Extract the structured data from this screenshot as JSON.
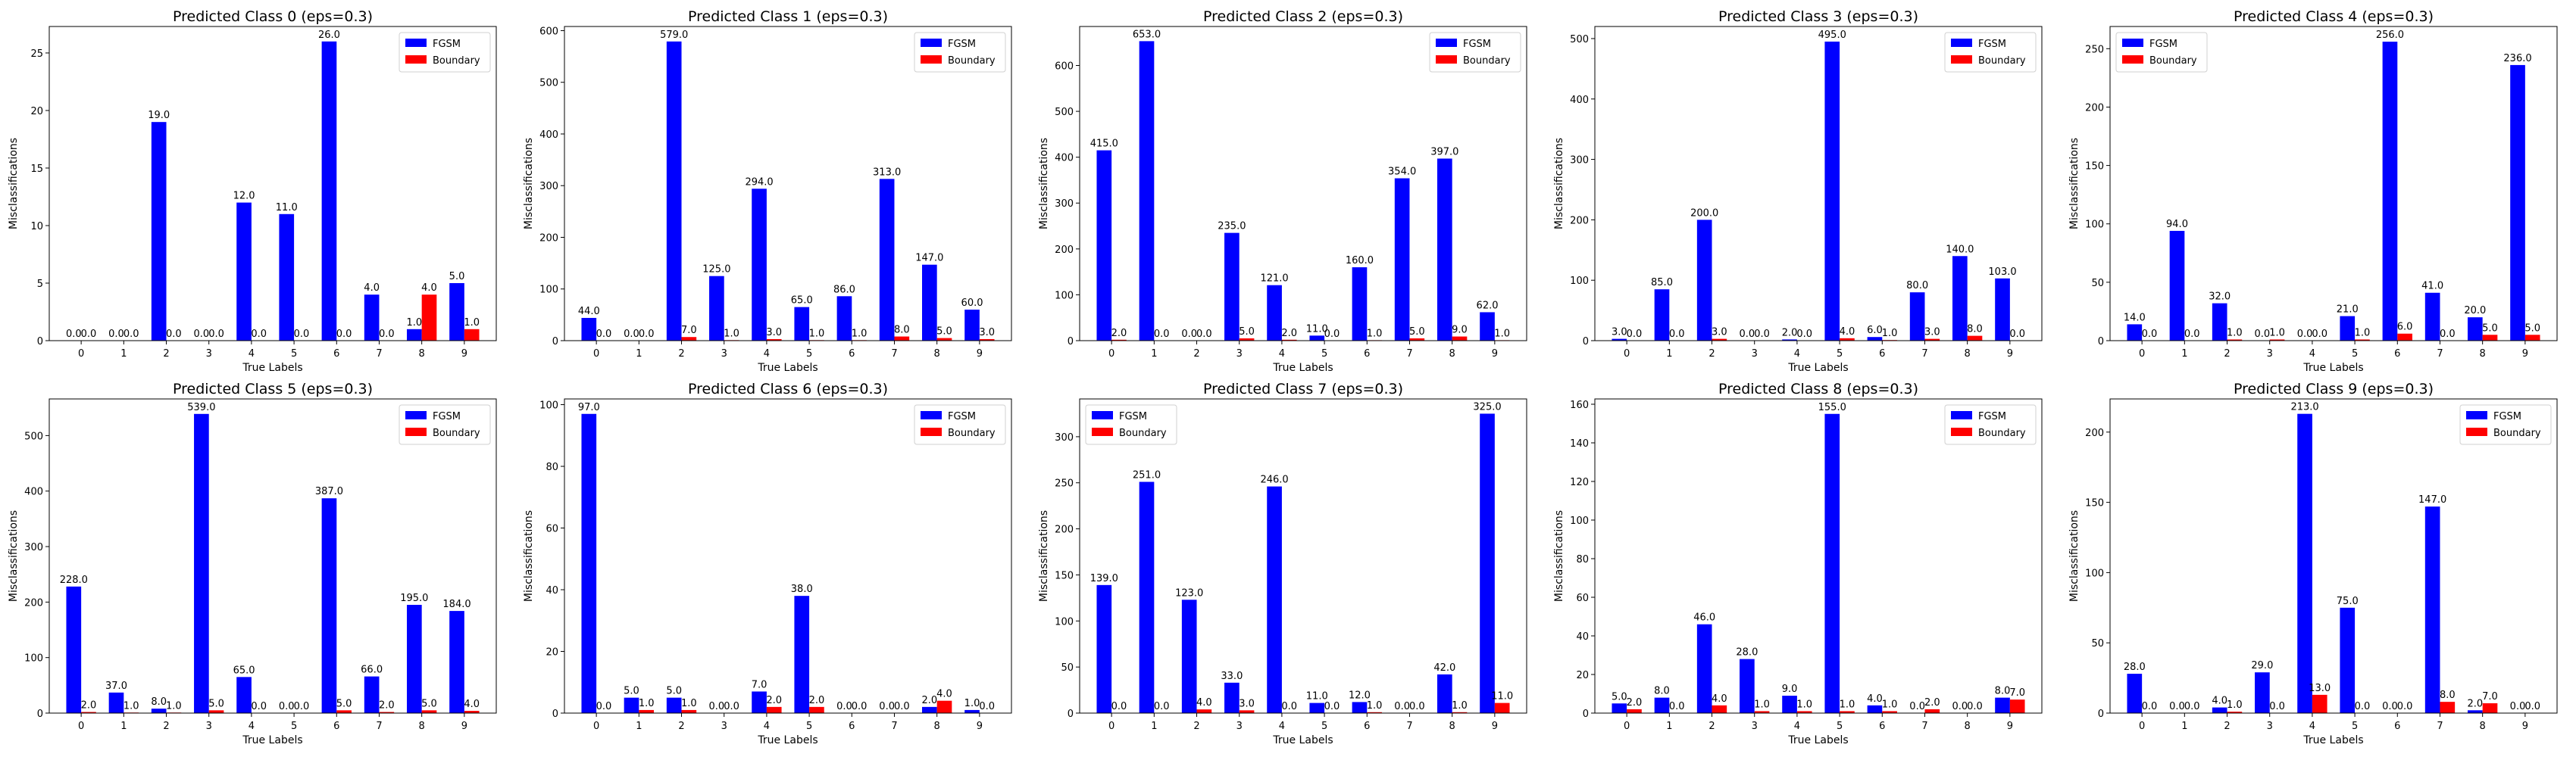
{
  "colors": {
    "fgsm": "#0000ff",
    "boundary": "#ff0000"
  },
  "chart_data": [
    {
      "type": "bar",
      "title": "Predicted Class 0 (eps=0.3)",
      "xlabel": "True Labels",
      "ylabel": "Misclassifications",
      "categories": [
        "0",
        "1",
        "2",
        "3",
        "4",
        "5",
        "6",
        "7",
        "8",
        "9"
      ],
      "ylim": [
        0,
        27.3
      ],
      "yticks": [
        0,
        5,
        10,
        15,
        20,
        25
      ],
      "legend_position": "top-right",
      "series": [
        {
          "name": "FGSM",
          "values": [
            0,
            0,
            19,
            0,
            12,
            11,
            26,
            4,
            1,
            5
          ]
        },
        {
          "name": "Boundary",
          "values": [
            0,
            0,
            0,
            0,
            0,
            0,
            0,
            0,
            4,
            1
          ]
        }
      ]
    },
    {
      "type": "bar",
      "title": "Predicted Class 1 (eps=0.3)",
      "xlabel": "True Labels",
      "ylabel": "Misclassifications",
      "categories": [
        "0",
        "1",
        "2",
        "3",
        "4",
        "5",
        "6",
        "7",
        "8",
        "9"
      ],
      "ylim": [
        0,
        608
      ],
      "yticks": [
        0,
        100,
        200,
        300,
        400,
        500,
        600
      ],
      "legend_position": "top-right",
      "series": [
        {
          "name": "FGSM",
          "values": [
            44,
            0,
            579,
            125,
            294,
            65,
            86,
            313,
            147,
            60
          ]
        },
        {
          "name": "Boundary",
          "values": [
            0,
            0,
            7,
            1,
            3,
            1,
            1,
            8,
            5,
            3
          ]
        }
      ]
    },
    {
      "type": "bar",
      "title": "Predicted Class 2 (eps=0.3)",
      "xlabel": "True Labels",
      "ylabel": "Misclassifications",
      "categories": [
        "0",
        "1",
        "2",
        "3",
        "4",
        "5",
        "6",
        "7",
        "8",
        "9"
      ],
      "ylim": [
        0,
        685
      ],
      "yticks": [
        0,
        100,
        200,
        300,
        400,
        500,
        600
      ],
      "legend_position": "top-right",
      "series": [
        {
          "name": "FGSM",
          "values": [
            415,
            653,
            0,
            235,
            121,
            11,
            160,
            354,
            397,
            62
          ]
        },
        {
          "name": "Boundary",
          "values": [
            2,
            0,
            0,
            5,
            2,
            0,
            1,
            5,
            9,
            1
          ]
        }
      ]
    },
    {
      "type": "bar",
      "title": "Predicted Class 3 (eps=0.3)",
      "xlabel": "True Labels",
      "ylabel": "Misclassifications",
      "categories": [
        "0",
        "1",
        "2",
        "3",
        "4",
        "5",
        "6",
        "7",
        "8",
        "9"
      ],
      "ylim": [
        0,
        520
      ],
      "yticks": [
        0,
        100,
        200,
        300,
        400,
        500
      ],
      "legend_position": "top-right",
      "series": [
        {
          "name": "FGSM",
          "values": [
            3,
            85,
            200,
            0,
            2,
            495,
            6,
            80,
            140,
            103
          ]
        },
        {
          "name": "Boundary",
          "values": [
            0,
            0,
            3,
            0,
            0,
            4,
            1,
            3,
            8,
            0
          ]
        }
      ]
    },
    {
      "type": "bar",
      "title": "Predicted Class 4 (eps=0.3)",
      "xlabel": "True Labels",
      "ylabel": "Misclassifications",
      "categories": [
        "0",
        "1",
        "2",
        "3",
        "4",
        "5",
        "6",
        "7",
        "8",
        "9"
      ],
      "ylim": [
        0,
        269
      ],
      "yticks": [
        0,
        50,
        100,
        150,
        200,
        250
      ],
      "legend_position": "top-left",
      "series": [
        {
          "name": "FGSM",
          "values": [
            14,
            94,
            32,
            0,
            0,
            21,
            256,
            41,
            20,
            236
          ]
        },
        {
          "name": "Boundary",
          "values": [
            0,
            0,
            1,
            1,
            0,
            1,
            6,
            0,
            5,
            5
          ]
        }
      ]
    },
    {
      "type": "bar",
      "title": "Predicted Class 5 (eps=0.3)",
      "xlabel": "True Labels",
      "ylabel": "Misclassifications",
      "categories": [
        "0",
        "1",
        "2",
        "3",
        "4",
        "5",
        "6",
        "7",
        "8",
        "9"
      ],
      "ylim": [
        0,
        566
      ],
      "yticks": [
        0,
        100,
        200,
        300,
        400,
        500
      ],
      "legend_position": "top-right",
      "series": [
        {
          "name": "FGSM",
          "values": [
            228,
            37,
            8,
            539,
            65,
            0,
            387,
            66,
            195,
            184
          ]
        },
        {
          "name": "Boundary",
          "values": [
            2,
            1,
            1,
            5,
            0,
            0,
            5,
            2,
            5,
            4
          ]
        }
      ]
    },
    {
      "type": "bar",
      "title": "Predicted Class 6 (eps=0.3)",
      "xlabel": "True Labels",
      "ylabel": "Misclassifications",
      "categories": [
        "0",
        "1",
        "2",
        "3",
        "4",
        "5",
        "6",
        "7",
        "8",
        "9"
      ],
      "ylim": [
        0,
        101.85
      ],
      "yticks": [
        0,
        20,
        40,
        60,
        80,
        100
      ],
      "legend_position": "top-right",
      "series": [
        {
          "name": "FGSM",
          "values": [
            97,
            5,
            5,
            0,
            7,
            38,
            0,
            0,
            2,
            1
          ]
        },
        {
          "name": "Boundary",
          "values": [
            0,
            1,
            1,
            0,
            2,
            2,
            0,
            0,
            4,
            0
          ]
        }
      ]
    },
    {
      "type": "bar",
      "title": "Predicted Class 7 (eps=0.3)",
      "xlabel": "True Labels",
      "ylabel": "Misclassifications",
      "categories": [
        "0",
        "1",
        "2",
        "3",
        "4",
        "5",
        "6",
        "7",
        "8",
        "9"
      ],
      "ylim": [
        0,
        341
      ],
      "yticks": [
        0,
        50,
        100,
        150,
        200,
        250,
        300
      ],
      "legend_position": "top-left",
      "series": [
        {
          "name": "FGSM",
          "values": [
            139,
            251,
            123,
            33,
            246,
            11,
            12,
            0,
            42,
            325
          ]
        },
        {
          "name": "Boundary",
          "values": [
            0,
            0,
            4,
            3,
            0,
            0,
            1,
            0,
            1,
            11
          ]
        }
      ]
    },
    {
      "type": "bar",
      "title": "Predicted Class 8 (eps=0.3)",
      "xlabel": "True Labels",
      "ylabel": "Misclassifications",
      "categories": [
        "0",
        "1",
        "2",
        "3",
        "4",
        "5",
        "6",
        "7",
        "8",
        "9"
      ],
      "ylim": [
        0,
        162.75
      ],
      "yticks": [
        0,
        20,
        40,
        60,
        80,
        100,
        120,
        140,
        160
      ],
      "legend_position": "top-right",
      "series": [
        {
          "name": "FGSM",
          "values": [
            5,
            8,
            46,
            28,
            9,
            155,
            4,
            0,
            0,
            8
          ]
        },
        {
          "name": "Boundary",
          "values": [
            2,
            0,
            4,
            1,
            1,
            1,
            1,
            2,
            0,
            7
          ]
        }
      ]
    },
    {
      "type": "bar",
      "title": "Predicted Class 9 (eps=0.3)",
      "xlabel": "True Labels",
      "ylabel": "Misclassifications",
      "categories": [
        "0",
        "1",
        "2",
        "3",
        "4",
        "5",
        "6",
        "7",
        "8",
        "9"
      ],
      "ylim": [
        0,
        223.6
      ],
      "yticks": [
        0,
        50,
        100,
        150,
        200
      ],
      "legend_position": "top-right",
      "series": [
        {
          "name": "FGSM",
          "values": [
            28,
            0,
            4,
            29,
            213,
            75,
            0,
            147,
            2,
            0
          ]
        },
        {
          "name": "Boundary",
          "values": [
            0,
            0,
            1,
            0,
            13,
            0,
            0,
            8,
            7,
            0
          ]
        }
      ]
    }
  ]
}
